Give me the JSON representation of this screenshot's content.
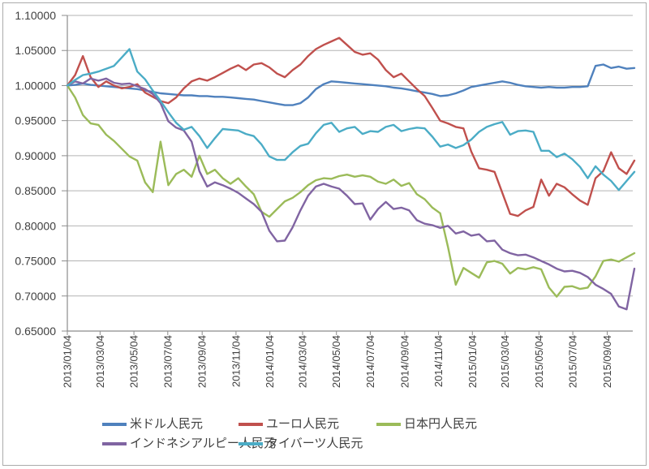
{
  "chart_data": {
    "type": "line",
    "title": "",
    "xlabel": "",
    "ylabel": "",
    "grid": true,
    "legend_position": "bottom",
    "y_min": 0.65,
    "y_max": 1.1,
    "y_tick_labels": [
      "1.10000",
      "1.05000",
      "1.00000",
      "0.95000",
      "0.90000",
      "0.85000",
      "0.80000",
      "0.75000",
      "0.70000",
      "0.65000"
    ],
    "x_start_date": "2013/01/04",
    "x_step_days": 14,
    "x_tick_labels": [
      "2013/01/04",
      "2013/03/04",
      "2013/05/04",
      "2013/07/04",
      "2013/09/04",
      "2013/11/04",
      "2014/01/04",
      "2014/03/04",
      "2014/05/04",
      "2014/07/04",
      "2014/09/04",
      "2014/11/04",
      "2015/01/04",
      "2015/03/04",
      "2015/05/04",
      "2015/07/04",
      "2015/09/04"
    ],
    "series": [
      {
        "key": "usd",
        "name": "米ドル人民元",
        "color": "#4F81BD",
        "values": [
          1.0,
          1.001,
          1.003,
          1.001,
          1.0,
          0.999,
          0.998,
          0.997,
          0.996,
          0.995,
          0.993,
          0.991,
          0.989,
          0.988,
          0.987,
          0.986,
          0.986,
          0.985,
          0.985,
          0.984,
          0.984,
          0.983,
          0.982,
          0.981,
          0.98,
          0.978,
          0.976,
          0.974,
          0.972,
          0.972,
          0.975,
          0.983,
          0.995,
          1.002,
          1.006,
          1.005,
          1.004,
          1.003,
          1.002,
          1.001,
          1.0,
          0.999,
          0.997,
          0.996,
          0.994,
          0.992,
          0.99,
          0.988,
          0.985,
          0.986,
          0.989,
          0.993,
          0.998,
          1.0,
          1.002,
          1.004,
          1.006,
          1.004,
          1.001,
          0.999,
          0.998,
          0.997,
          0.998,
          0.997,
          0.997,
          0.998,
          0.998,
          0.999,
          1.028,
          1.03,
          1.025,
          1.027,
          1.024,
          1.025
        ]
      },
      {
        "key": "eur",
        "name": "ユーロ人民元",
        "color": "#C0504D",
        "values": [
          1.0,
          1.015,
          1.042,
          1.012,
          0.998,
          1.006,
          1.0,
          0.996,
          0.998,
          1.002,
          0.99,
          0.984,
          0.978,
          0.975,
          0.983,
          0.996,
          1.006,
          1.01,
          1.007,
          1.012,
          1.018,
          1.024,
          1.029,
          1.022,
          1.03,
          1.032,
          1.026,
          1.017,
          1.012,
          1.022,
          1.03,
          1.042,
          1.052,
          1.058,
          1.063,
          1.068,
          1.058,
          1.048,
          1.044,
          1.046,
          1.037,
          1.022,
          1.012,
          1.017,
          1.006,
          0.995,
          0.985,
          0.968,
          0.95,
          0.946,
          0.941,
          0.939,
          0.906,
          0.882,
          0.88,
          0.877,
          0.847,
          0.817,
          0.814,
          0.822,
          0.827,
          0.866,
          0.843,
          0.86,
          0.855,
          0.845,
          0.836,
          0.83,
          0.868,
          0.878,
          0.905,
          0.882,
          0.874,
          0.893
        ]
      },
      {
        "key": "jpy",
        "name": "日本円人民元",
        "color": "#9BBB59",
        "values": [
          1.0,
          0.983,
          0.958,
          0.946,
          0.944,
          0.93,
          0.921,
          0.91,
          0.899,
          0.893,
          0.862,
          0.848,
          0.92,
          0.858,
          0.874,
          0.88,
          0.87,
          0.9,
          0.874,
          0.88,
          0.868,
          0.86,
          0.868,
          0.856,
          0.845,
          0.82,
          0.813,
          0.824,
          0.835,
          0.84,
          0.848,
          0.858,
          0.865,
          0.868,
          0.867,
          0.871,
          0.873,
          0.87,
          0.872,
          0.87,
          0.863,
          0.86,
          0.866,
          0.857,
          0.861,
          0.845,
          0.838,
          0.826,
          0.818,
          0.77,
          0.716,
          0.74,
          0.733,
          0.726,
          0.748,
          0.75,
          0.746,
          0.732,
          0.74,
          0.738,
          0.741,
          0.738,
          0.712,
          0.699,
          0.713,
          0.714,
          0.71,
          0.712,
          0.728,
          0.75,
          0.752,
          0.749,
          0.755,
          0.761
        ]
      },
      {
        "key": "idr",
        "name": "インドネシアルピー人民元",
        "color": "#8064A2",
        "values": [
          1.0,
          1.006,
          1.003,
          1.01,
          1.007,
          1.01,
          1.004,
          1.002,
          1.003,
          0.999,
          0.995,
          0.988,
          0.975,
          0.949,
          0.94,
          0.936,
          0.92,
          0.878,
          0.856,
          0.862,
          0.858,
          0.853,
          0.847,
          0.839,
          0.831,
          0.82,
          0.793,
          0.778,
          0.779,
          0.798,
          0.822,
          0.843,
          0.856,
          0.86,
          0.856,
          0.853,
          0.843,
          0.831,
          0.832,
          0.809,
          0.824,
          0.834,
          0.824,
          0.826,
          0.822,
          0.808,
          0.803,
          0.801,
          0.797,
          0.8,
          0.789,
          0.792,
          0.786,
          0.788,
          0.778,
          0.779,
          0.766,
          0.761,
          0.758,
          0.759,
          0.755,
          0.75,
          0.745,
          0.739,
          0.735,
          0.736,
          0.733,
          0.727,
          0.716,
          0.71,
          0.703,
          0.685,
          0.681,
          0.739
        ]
      },
      {
        "key": "thb",
        "name": "タイバーツ人民元",
        "color": "#4BACC6",
        "values": [
          1.0,
          1.008,
          1.015,
          1.017,
          1.02,
          1.024,
          1.028,
          1.04,
          1.052,
          1.02,
          1.009,
          0.993,
          0.978,
          0.962,
          0.947,
          0.937,
          0.941,
          0.928,
          0.911,
          0.925,
          0.938,
          0.937,
          0.936,
          0.931,
          0.928,
          0.916,
          0.899,
          0.894,
          0.894,
          0.905,
          0.914,
          0.917,
          0.932,
          0.944,
          0.947,
          0.934,
          0.939,
          0.941,
          0.931,
          0.935,
          0.934,
          0.941,
          0.944,
          0.935,
          0.938,
          0.94,
          0.939,
          0.927,
          0.913,
          0.916,
          0.911,
          0.915,
          0.923,
          0.934,
          0.941,
          0.945,
          0.948,
          0.93,
          0.935,
          0.936,
          0.934,
          0.907,
          0.907,
          0.898,
          0.903,
          0.895,
          0.884,
          0.868,
          0.885,
          0.873,
          0.864,
          0.851,
          0.864,
          0.877
        ]
      }
    ]
  },
  "colors": {
    "grid": "#B3B3B3",
    "axis": "#8C8C8C",
    "tick_text": "#3F3F3F",
    "frame_border": "#ABABAB",
    "background": "#FFFFFF"
  }
}
